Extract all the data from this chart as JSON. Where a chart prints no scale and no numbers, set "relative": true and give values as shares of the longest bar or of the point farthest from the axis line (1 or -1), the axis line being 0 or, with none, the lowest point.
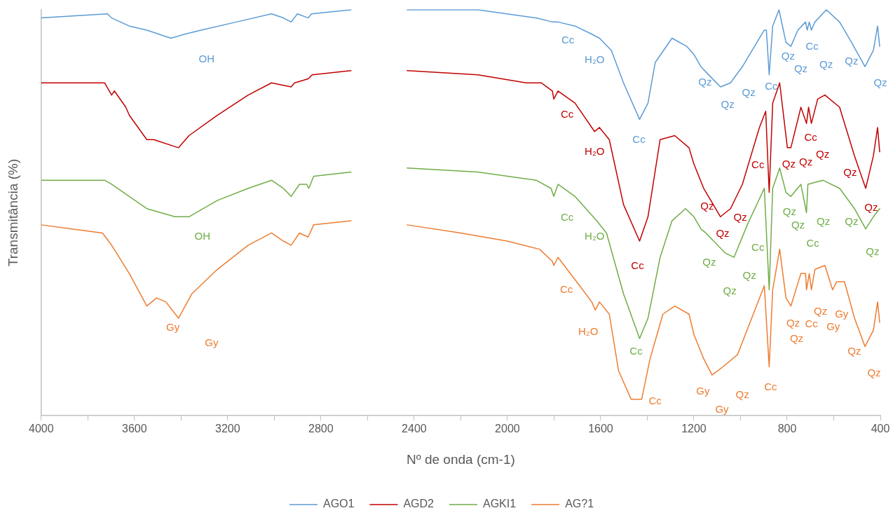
{
  "chart_data": {
    "type": "line",
    "relative": true,
    "xlabel": "Nº de onda (cm-1)",
    "ylabel": "Transmitância (%)",
    "xlim": [
      4000,
      400
    ],
    "xticks": [
      4000,
      {
        "value": 3800,
        "label": null
      },
      3600,
      {
        "value": 3400,
        "label": null
      },
      3200,
      {
        "value": 3000,
        "label": null
      },
      2800,
      {
        "value": 2600,
        "label": null
      },
      2400,
      {
        "value": 2200,
        "label": null
      },
      2000,
      {
        "value": 1800,
        "label": null
      },
      1600,
      {
        "value": 1400,
        "label": null
      },
      1200,
      {
        "value": 1000,
        "label": null
      },
      800,
      {
        "value": 600,
        "label": null
      },
      400
    ],
    "legend": "bottom",
    "marker": "none",
    "line_style": "solid",
    "series": [
      {
        "name": "AGO1",
        "color": "#5b9bd5",
        "x": [
          4000,
          3716,
          3698,
          3622,
          3547,
          3444,
          3384,
          3314,
          3163,
          3012,
          2961,
          2928,
          2901,
          2855,
          2840,
          2671,
          2550,
          2430,
          2127,
          1877,
          1807,
          1801,
          1783,
          1710,
          1638,
          1605,
          1554,
          1502,
          1433,
          1397,
          1366,
          1294,
          1231,
          1200,
          1170,
          1137,
          1086,
          1043,
          992,
          898,
          889,
          877,
          862,
          835,
          805,
          784,
          754,
          721,
          714,
          705,
          696,
          681,
          632,
          575,
          524,
          466,
          430,
          412,
          403
        ],
        "values": [
          0.98,
          0.99,
          0.98,
          0.96,
          0.95,
          0.93,
          0.94,
          0.95,
          0.97,
          0.99,
          0.98,
          0.97,
          0.99,
          0.98,
          0.99,
          1.0,
          null,
          1.0,
          1.0,
          0.98,
          0.97,
          0.97,
          0.97,
          0.96,
          0.94,
          0.93,
          0.9,
          0.82,
          0.73,
          0.77,
          0.87,
          0.93,
          0.91,
          0.89,
          0.86,
          0.84,
          0.81,
          0.82,
          0.86,
          0.95,
          0.95,
          0.84,
          0.96,
          1.0,
          0.92,
          0.91,
          0.95,
          0.97,
          0.95,
          0.97,
          0.95,
          0.97,
          1.0,
          0.97,
          0.92,
          0.86,
          0.9,
          0.96,
          0.91
        ]
      },
      {
        "name": "AGD2",
        "color": "#c00000",
        "x": [
          4000,
          3728,
          3698,
          3686,
          3637,
          3622,
          3547,
          3517,
          3411,
          3366,
          3245,
          3112,
          3012,
          2928,
          2913,
          2855,
          2837,
          2671,
          2550,
          2430,
          2127,
          1919,
          1855,
          1807,
          1801,
          1783,
          1710,
          1626,
          1605,
          1563,
          1502,
          1433,
          1397,
          1345,
          1282,
          1221,
          1200,
          1158,
          1086,
          1043,
          992,
          919,
          892,
          877,
          862,
          832,
          799,
          784,
          741,
          717,
          708,
          696,
          669,
          638,
          575,
          511,
          463,
          430,
          412,
          403
        ],
        "values": [
          0.82,
          0.82,
          0.79,
          0.8,
          0.76,
          0.74,
          0.68,
          0.68,
          0.66,
          0.69,
          0.74,
          0.79,
          0.82,
          0.81,
          0.82,
          0.83,
          0.84,
          0.85,
          null,
          0.85,
          0.84,
          0.82,
          0.82,
          0.8,
          0.78,
          0.8,
          0.77,
          0.7,
          0.71,
          0.68,
          0.52,
          0.43,
          0.49,
          0.68,
          0.69,
          0.66,
          0.62,
          0.56,
          0.49,
          0.51,
          0.57,
          0.71,
          0.75,
          0.55,
          0.77,
          0.82,
          0.66,
          0.66,
          0.76,
          0.72,
          0.76,
          0.72,
          0.78,
          0.79,
          0.76,
          0.64,
          0.56,
          0.64,
          0.71,
          0.65
        ]
      },
      {
        "name": "AGKI1",
        "color": "#70ad47",
        "x": [
          4000,
          3728,
          3698,
          3622,
          3547,
          3426,
          3366,
          3245,
          3112,
          3012,
          2961,
          2928,
          2892,
          2861,
          2852,
          2831,
          2671,
          2550,
          2430,
          2127,
          1877,
          1813,
          1801,
          1783,
          1710,
          1617,
          1575,
          1502,
          1433,
          1397,
          1345,
          1294,
          1236,
          1200,
          1170,
          1149,
          1064,
          1028,
          971,
          898,
          877,
          862,
          832,
          805,
          784,
          741,
          717,
          711,
          647,
          575,
          511,
          463,
          430,
          403
        ],
        "values": [
          0.58,
          0.58,
          0.57,
          0.54,
          0.51,
          0.49,
          0.49,
          0.53,
          0.56,
          0.58,
          0.56,
          0.54,
          0.57,
          0.57,
          0.56,
          0.59,
          0.6,
          null,
          0.61,
          0.6,
          0.58,
          0.56,
          0.54,
          0.57,
          0.54,
          0.48,
          0.45,
          0.3,
          0.19,
          0.24,
          0.39,
          0.48,
          0.51,
          0.49,
          0.46,
          0.45,
          0.4,
          0.39,
          0.47,
          0.56,
          0.31,
          0.56,
          0.61,
          0.55,
          0.54,
          0.57,
          0.5,
          0.57,
          0.58,
          0.56,
          0.51,
          0.46,
          0.49,
          0.51
        ]
      },
      {
        "name": "AG?1",
        "color": "#ed7d31",
        "x": [
          4000,
          3867,
          3737,
          3698,
          3622,
          3547,
          3505,
          3465,
          3411,
          3354,
          3245,
          3112,
          3012,
          2961,
          2928,
          2892,
          2855,
          2831,
          2671,
          2550,
          2430,
          2200,
          2001,
          1862,
          1807,
          1801,
          1783,
          1690,
          1638,
          1623,
          1605,
          1563,
          1523,
          1469,
          1424,
          1388,
          1333,
          1282,
          1221,
          1200,
          1158,
          1122,
          1076,
          1013,
          898,
          877,
          862,
          832,
          805,
          784,
          741,
          721,
          717,
          705,
          696,
          681,
          638,
          605,
          587,
          554,
          511,
          466,
          430,
          412,
          403
        ],
        "values": [
          0.47,
          0.46,
          0.45,
          0.42,
          0.35,
          0.27,
          0.29,
          0.28,
          0.24,
          0.3,
          0.36,
          0.42,
          0.45,
          0.43,
          0.42,
          0.45,
          0.44,
          0.47,
          0.48,
          null,
          0.47,
          0.45,
          0.43,
          0.41,
          0.38,
          0.37,
          0.39,
          0.32,
          0.28,
          0.26,
          0.28,
          0.25,
          0.11,
          0.04,
          0.04,
          0.14,
          0.25,
          0.27,
          0.25,
          0.2,
          0.14,
          0.1,
          0.12,
          0.15,
          0.32,
          0.12,
          0.31,
          0.41,
          0.29,
          0.27,
          0.35,
          0.35,
          0.31,
          0.35,
          0.31,
          0.36,
          0.37,
          0.31,
          0.33,
          0.33,
          0.24,
          0.17,
          0.21,
          0.28,
          0.23
        ]
      }
    ],
    "annotations": [
      "OH",
      "Cc",
      "H₂O",
      "Cc",
      "Qz",
      "Qz",
      "Qz",
      "Cc",
      "Qz",
      "Qz",
      "Cc",
      "Qz",
      "Qz",
      "Qz",
      "Cc",
      "H₂O",
      "Cc",
      "Qz",
      "Qz",
      "Qz",
      "Cc",
      "Qz",
      "Qz",
      "Cc",
      "Qz",
      "Qz",
      "Qz",
      "OH",
      "Cc",
      "H₂O",
      "Cc",
      "Qz",
      "Qz",
      "Cc",
      "Qz",
      "Qz",
      "Qz",
      "Cc",
      "Qz",
      "Qz",
      "Qz",
      "Gy",
      "Gy",
      "Cc",
      "H₂O",
      "Cc",
      "Gy",
      "Gy",
      "Qz",
      "Cc",
      "Qz",
      "Cc",
      "Qz",
      "Qz",
      "Gy",
      "Gy",
      "Qz",
      "Qz"
    ]
  }
}
